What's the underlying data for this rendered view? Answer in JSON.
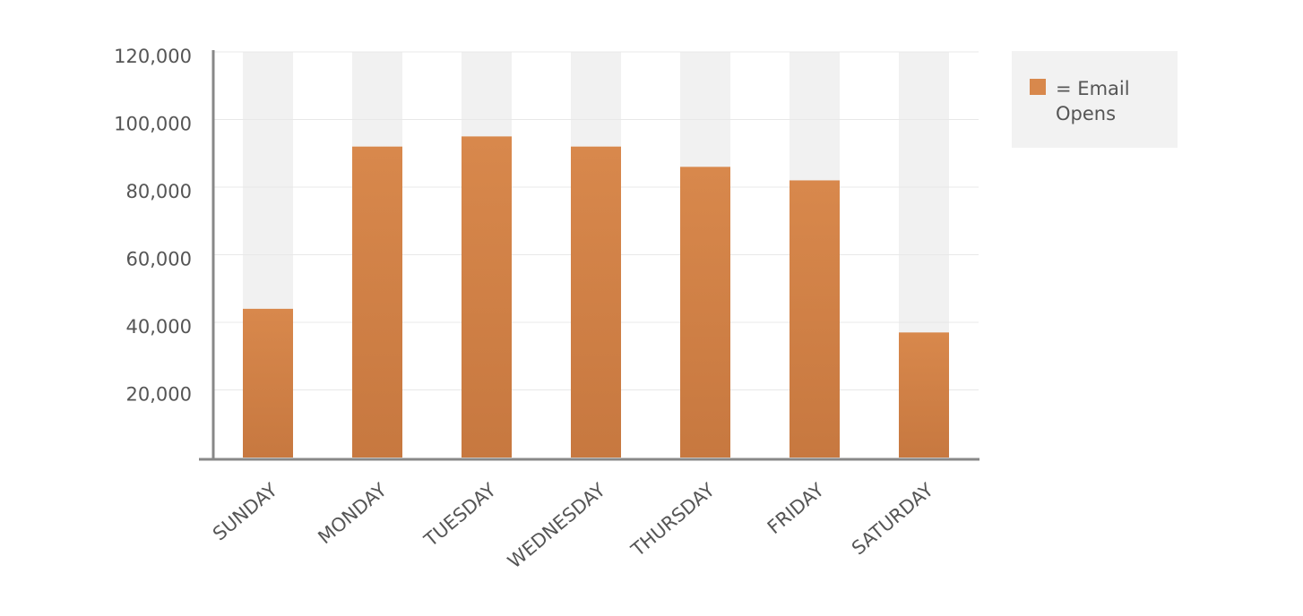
{
  "chart_data": {
    "type": "bar",
    "categories": [
      "SUNDAY",
      "MONDAY",
      "TUESDAY",
      "WEDNESDAY",
      "THURSDAY",
      "FRIDAY",
      "SATURDAY"
    ],
    "series": [
      {
        "name": "Email Opens",
        "color": "#d8884c",
        "values": [
          44000,
          92000,
          95000,
          92000,
          86000,
          82000,
          37000
        ]
      }
    ],
    "legend_separator": "=",
    "ylim": [
      0,
      120000
    ],
    "yticks": [
      {
        "value": 20000,
        "label": "20,000"
      },
      {
        "value": 40000,
        "label": "40,000"
      },
      {
        "value": 60000,
        "label": "60,000"
      },
      {
        "value": 80000,
        "label": "80,000"
      },
      {
        "value": 100000,
        "label": "100,000"
      },
      {
        "value": 120000,
        "label": "120,000"
      }
    ],
    "grid": true,
    "legend": "right"
  }
}
